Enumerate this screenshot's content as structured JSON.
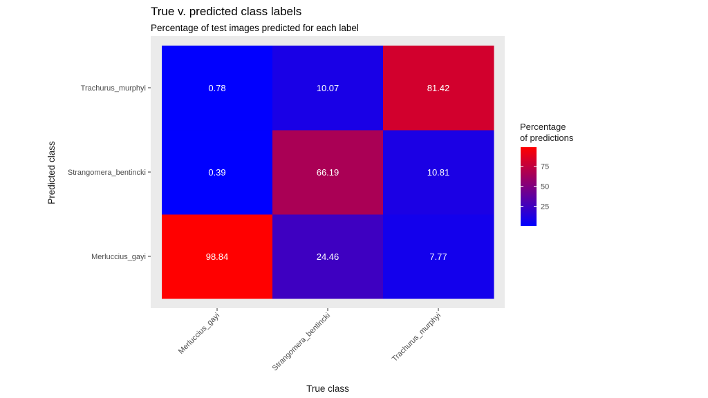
{
  "chart_data": {
    "type": "heatmap",
    "title": "True v. predicted class labels",
    "subtitle": "Percentage of test images predicted for each label",
    "xlabel": "True class",
    "ylabel": "Predicted class",
    "x_categories": [
      "Merluccius_gayi",
      "Strangomera_bentincki",
      "Trachurus_murphyi"
    ],
    "y_categories": [
      "Merluccius_gayi",
      "Strangomera_bentincki",
      "Trachurus_murphyi"
    ],
    "values": [
      [
        98.84,
        24.46,
        7.77
      ],
      [
        0.39,
        66.19,
        10.81
      ],
      [
        0.78,
        10.07,
        81.42
      ]
    ],
    "value_labels": [
      [
        "98.84",
        "24.46",
        "7.77"
      ],
      [
        "0.39",
        "66.19",
        "10.81"
      ],
      [
        "0.78",
        "10.07",
        "81.42"
      ]
    ],
    "color_scale": {
      "low": "#0000ff",
      "high": "#ff0000",
      "range": [
        0.39,
        98.84
      ]
    },
    "legend": {
      "title_lines": [
        "Percentage",
        "of predictions"
      ],
      "ticks": [
        25,
        50,
        75
      ],
      "placement": "right"
    },
    "panel_background": "#ebebeb",
    "grid": true
  }
}
